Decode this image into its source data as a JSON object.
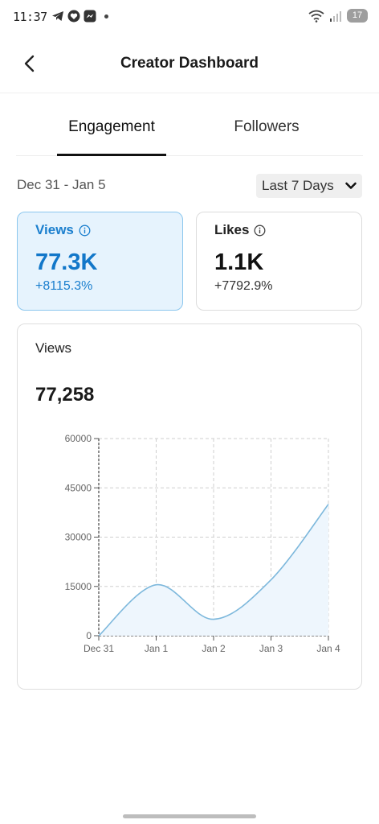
{
  "status_bar": {
    "time": "11:37",
    "left_icons": [
      "telegram-icon",
      "heart-app-icon",
      "messenger-icon"
    ],
    "battery": "17"
  },
  "header": {
    "title": "Creator Dashboard"
  },
  "tabs": [
    {
      "label": "Engagement",
      "selected": true
    },
    {
      "label": "Followers",
      "selected": false
    }
  ],
  "filter": {
    "date_range": "Dec 31 - Jan 5",
    "period": "Last 7 Days"
  },
  "metrics": [
    {
      "label": "Views",
      "value": "77.3K",
      "change": "+8115.3%",
      "selected": true
    },
    {
      "label": "Likes",
      "value": "1.1K",
      "change": "+7792.9%",
      "selected": false
    }
  ],
  "chart_panel": {
    "heading": "Views",
    "total": "77,258"
  },
  "colors": {
    "accent": "#1b7fce",
    "line": "#7db8dc",
    "fill": "#eef6fd"
  },
  "chart_data": {
    "type": "area",
    "categories": [
      "Dec 31",
      "Jan 1",
      "Jan 2",
      "Jan 3",
      "Jan 4"
    ],
    "series": [
      {
        "values": [
          0,
          15500,
          5000,
          17000,
          40000
        ]
      }
    ],
    "ylim": [
      0,
      60000
    ],
    "yticks": [
      0,
      15000,
      30000,
      45000,
      60000
    ],
    "grid": true,
    "title": "",
    "xlabel": "",
    "ylabel": ""
  }
}
